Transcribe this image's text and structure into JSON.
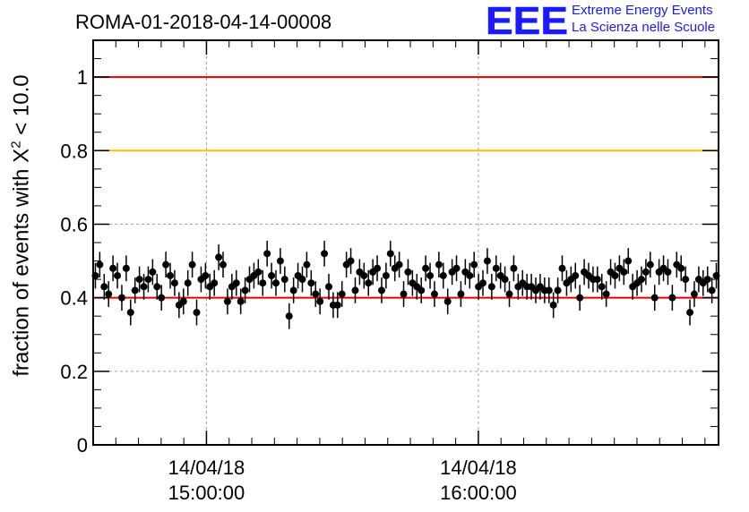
{
  "chart_data": {
    "type": "scatter",
    "title": "ROMA-01-2018-04-14-00008",
    "ylabel": "fraction of events with",
    "ylabel_symbol": "X",
    "ylabel_sup": "2",
    "ylabel_tail": "< 10.0",
    "ylim": [
      0,
      1.1
    ],
    "yticks": [
      "0",
      "0.2",
      "0.4",
      "0.6",
      "0.8",
      "1"
    ],
    "ytick_values": [
      0,
      0.2,
      0.4,
      0.6,
      0.8,
      1.0
    ],
    "xlim_minutes": [
      0,
      138
    ],
    "xticks": [
      {
        "minute": 25,
        "date": "14/04/18",
        "time": "15:00:00"
      },
      {
        "minute": 85,
        "date": "14/04/18",
        "time": "16:00:00"
      }
    ],
    "grid": true,
    "reference_lines": [
      {
        "y": 1.0,
        "color": "#e00000"
      },
      {
        "y": 0.8,
        "color": "#ffc000"
      },
      {
        "y": 0.4,
        "color": "#e00000"
      }
    ],
    "error": 0.035,
    "series": [
      {
        "values": [
          0.46,
          0.49,
          0.43,
          0.41,
          0.48,
          0.46,
          0.4,
          0.48,
          0.36,
          0.42,
          0.45,
          0.43,
          0.45,
          0.47,
          0.43,
          0.4,
          0.49,
          0.46,
          0.44,
          0.38,
          0.39,
          0.44,
          0.49,
          0.36,
          0.45,
          0.46,
          0.43,
          0.44,
          0.51,
          0.49,
          0.39,
          0.43,
          0.44,
          0.39,
          0.42,
          0.45,
          0.46,
          0.47,
          0.44,
          0.52,
          0.46,
          0.44,
          0.5,
          0.45,
          0.35,
          0.42,
          0.46,
          0.45,
          0.49,
          0.44,
          0.41,
          0.39,
          0.52,
          0.43,
          0.38,
          0.38,
          0.41,
          0.49,
          0.5,
          0.42,
          0.47,
          0.46,
          0.44,
          0.47,
          0.48,
          0.42,
          0.46,
          0.52,
          0.48,
          0.49,
          0.41,
          0.47,
          0.44,
          0.43,
          0.42,
          0.48,
          0.46,
          0.41,
          0.49,
          0.46,
          0.39,
          0.47,
          0.48,
          0.41,
          0.47,
          0.46,
          0.49,
          0.43,
          0.44,
          0.5,
          0.43,
          0.48,
          0.46,
          0.45,
          0.41,
          0.48,
          0.43,
          0.44,
          0.43,
          0.43,
          0.42,
          0.43,
          0.42,
          0.42,
          0.38,
          0.42,
          0.48,
          0.44,
          0.45,
          0.46,
          0.4,
          0.47,
          0.46,
          0.45,
          0.45,
          0.43,
          0.41,
          0.47,
          0.46,
          0.48,
          0.47,
          0.5,
          0.43,
          0.44,
          0.45,
          0.47,
          0.49,
          0.4,
          0.47,
          0.48,
          0.47,
          0.4,
          0.49,
          0.48,
          0.45,
          0.36,
          0.41,
          0.45,
          0.44,
          0.45,
          0.42,
          0.46
        ]
      }
    ]
  },
  "logo": {
    "mark": "EEE",
    "line1": "Extreme Energy Events",
    "line2": "La Scienza nelle Scuole",
    "color": "#1a1aff"
  },
  "colors": {
    "marker": "#000000",
    "grid": "#a0a0a0"
  }
}
